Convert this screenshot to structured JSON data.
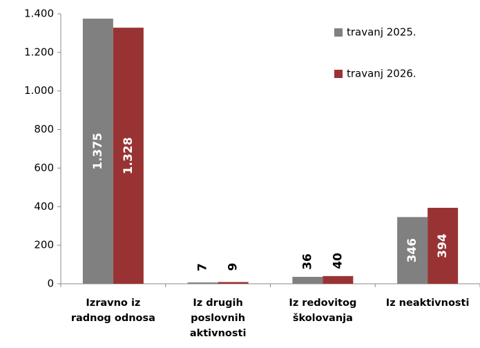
{
  "chart_data": {
    "type": "bar",
    "categories": [
      [
        "Izravno iz",
        "radnog odnosa"
      ],
      [
        "Iz drugih",
        "poslovnih",
        "aktivnosti"
      ],
      [
        "Iz redovitog",
        "školovanja"
      ],
      [
        "Iz neaktivnosti"
      ]
    ],
    "series": [
      {
        "name": "travanj 2025.",
        "color": "#808080",
        "values": [
          1375,
          7,
          36,
          346
        ],
        "value_labels": [
          "1.375",
          "7",
          "36",
          "346"
        ]
      },
      {
        "name": "travanj 2026.",
        "color": "#993333",
        "values": [
          1328,
          9,
          40,
          394
        ],
        "value_labels": [
          "1.328",
          "9",
          "40",
          "394"
        ]
      }
    ],
    "ylim": [
      0,
      1400
    ],
    "yticks": [
      0,
      200,
      400,
      600,
      800,
      {
        "value": 1000,
        "label": "1.000"
      },
      {
        "value": 1200,
        "label": "1.200"
      },
      {
        "value": 1400,
        "label": "1.400"
      }
    ],
    "grid": false,
    "legend": "upper right"
  }
}
